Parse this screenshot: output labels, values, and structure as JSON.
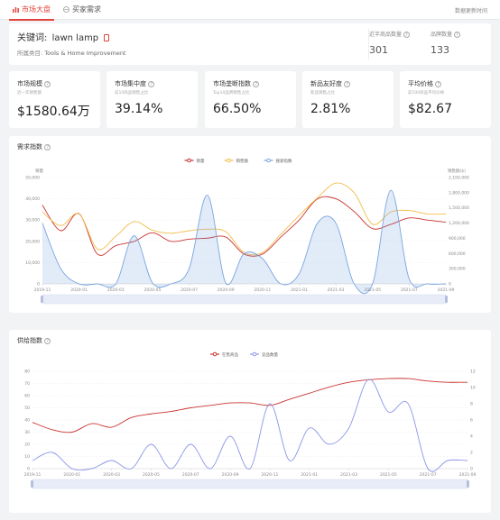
{
  "tabs": [
    {
      "label": "市场大盘",
      "icon": "bar-chart-icon"
    },
    {
      "label": "买家需求",
      "icon": "globe-icon"
    }
  ],
  "updated_label": "数据更新时间",
  "keyword": {
    "label": "关键词:",
    "value": "lawn lamp"
  },
  "category": {
    "label": "所属类目:",
    "path": "Tools & Home Improvement"
  },
  "stats": [
    {
      "label": "近半商品数量",
      "value": "301"
    },
    {
      "label": "品牌数量",
      "value": "133"
    }
  ],
  "metrics": [
    {
      "title": "市场规模",
      "subtitle": "近一年销售额",
      "value": "$1580.64万"
    },
    {
      "title": "市场集中度",
      "subtitle": "前10商品销售占比",
      "value": "39.14%"
    },
    {
      "title": "市场垄断指数",
      "subtitle": "Top10品牌销售占比",
      "value": "66.50%"
    },
    {
      "title": "新品友好度",
      "subtitle": "新品销售占比",
      "value": "2.81%"
    },
    {
      "title": "平均价格",
      "subtitle": "前100商品平均价格",
      "value": "$82.67"
    }
  ],
  "colors": {
    "accent": "#e1443a",
    "sales": "#c9332f",
    "revenue": "#f2bd4b",
    "search": "#7aa6df",
    "competitor": "#8c96e8"
  },
  "demand": {
    "title": "需求指数",
    "left_axis_label": "销量",
    "right_axis_label": "销售额($)"
  },
  "supply": {
    "title": "供给指数"
  },
  "chart_data": [
    {
      "type": "line",
      "title": "需求指数",
      "legend": [
        "销量",
        "销售额",
        "搜索指数"
      ],
      "legend_position": "top-center",
      "x": [
        "2019-11",
        "2019-12",
        "2020-01",
        "2020-02",
        "2020-03",
        "2020-04",
        "2020-05",
        "2020-06",
        "2020-07",
        "2020-08",
        "2020-09",
        "2020-10",
        "2020-11",
        "2020-12",
        "2021-01",
        "2021-02",
        "2021-03",
        "2021-04",
        "2021-05",
        "2021-06",
        "2021-07",
        "2021-08",
        "2021-09"
      ],
      "x_tick_labels": [
        "2019-11",
        "2020-01",
        "2020-03",
        "2020-05",
        "2020-07",
        "2020-09",
        "2020-11",
        "2021-01",
        "2021-03",
        "2021-05",
        "2021-07",
        "2021-09"
      ],
      "ylim_left": [
        0,
        50000
      ],
      "y_ticks_left": [
        "0",
        "10,000",
        "20,000",
        "30,000",
        "40,000",
        "50,000"
      ],
      "ylim_right": [
        0,
        2100000
      ],
      "y_ticks_right": [
        "0",
        "300,000",
        "600,000",
        "900,000",
        "1,200,000",
        "1,500,000",
        "1,800,000",
        "2,100,000"
      ],
      "series": [
        {
          "name": "销量",
          "axis": "left",
          "values": [
            37000,
            25000,
            33000,
            14000,
            18000,
            20000,
            24000,
            20000,
            21000,
            21500,
            22000,
            14000,
            14000,
            22000,
            30000,
            40000,
            40000,
            34000,
            26000,
            28000,
            31000,
            30000,
            29000
          ]
        },
        {
          "name": "销售额",
          "axis": "right",
          "values": [
            1420000,
            1150000,
            1380000,
            690000,
            940000,
            1230000,
            1060000,
            1000000,
            1050000,
            1080000,
            1030000,
            620000,
            620000,
            980000,
            1350000,
            1700000,
            1990000,
            1800000,
            1180000,
            1420000,
            1450000,
            1380000,
            1380000
          ]
        },
        {
          "name": "搜索指数",
          "axis": "right",
          "values": [
            1200000,
            300000,
            0,
            0,
            0,
            950000,
            20000,
            0,
            300000,
            1750000,
            20000,
            600000,
            500000,
            0,
            200000,
            1200000,
            1200000,
            0,
            0,
            1850000,
            100000,
            0,
            0
          ]
        }
      ],
      "grid": true
    },
    {
      "type": "line",
      "title": "供给指数",
      "legend": [
        "在售商品",
        "竞品数量"
      ],
      "legend_position": "top-center",
      "x": [
        "2019-11",
        "2019-12",
        "2020-01",
        "2020-02",
        "2020-03",
        "2020-04",
        "2020-05",
        "2020-06",
        "2020-07",
        "2020-08",
        "2020-09",
        "2020-10",
        "2020-11",
        "2020-12",
        "2021-01",
        "2021-02",
        "2021-03",
        "2021-04",
        "2021-05",
        "2021-06",
        "2021-07",
        "2021-08",
        "2021-09"
      ],
      "x_tick_labels": [
        "2019-11",
        "2020-01",
        "2020-03",
        "2020-05",
        "2020-07",
        "2020-09",
        "2020-11",
        "2021-01",
        "2021-03",
        "2021-05",
        "2021-07",
        "2021-09"
      ],
      "ylim_left": [
        0,
        80
      ],
      "y_ticks_left": [
        "0",
        "10",
        "20",
        "30",
        "40",
        "50",
        "60",
        "70",
        "80"
      ],
      "ylim_right": [
        0,
        12
      ],
      "y_ticks_right": [
        "0",
        "2",
        "4",
        "6",
        "8",
        "10",
        "12"
      ],
      "series": [
        {
          "name": "在售商品",
          "axis": "left",
          "values": [
            38,
            32,
            30,
            37,
            34,
            42,
            45,
            47,
            50,
            52,
            54,
            54,
            52,
            57,
            62,
            67,
            71,
            73,
            74,
            74,
            72,
            71,
            71
          ]
        },
        {
          "name": "竞品数量",
          "axis": "right",
          "values": [
            1,
            2,
            0,
            0,
            1,
            0,
            3,
            0,
            3,
            0,
            4,
            0,
            8,
            1,
            5,
            3,
            5,
            11,
            7,
            8,
            0,
            1,
            1
          ]
        }
      ],
      "grid": true
    }
  ]
}
